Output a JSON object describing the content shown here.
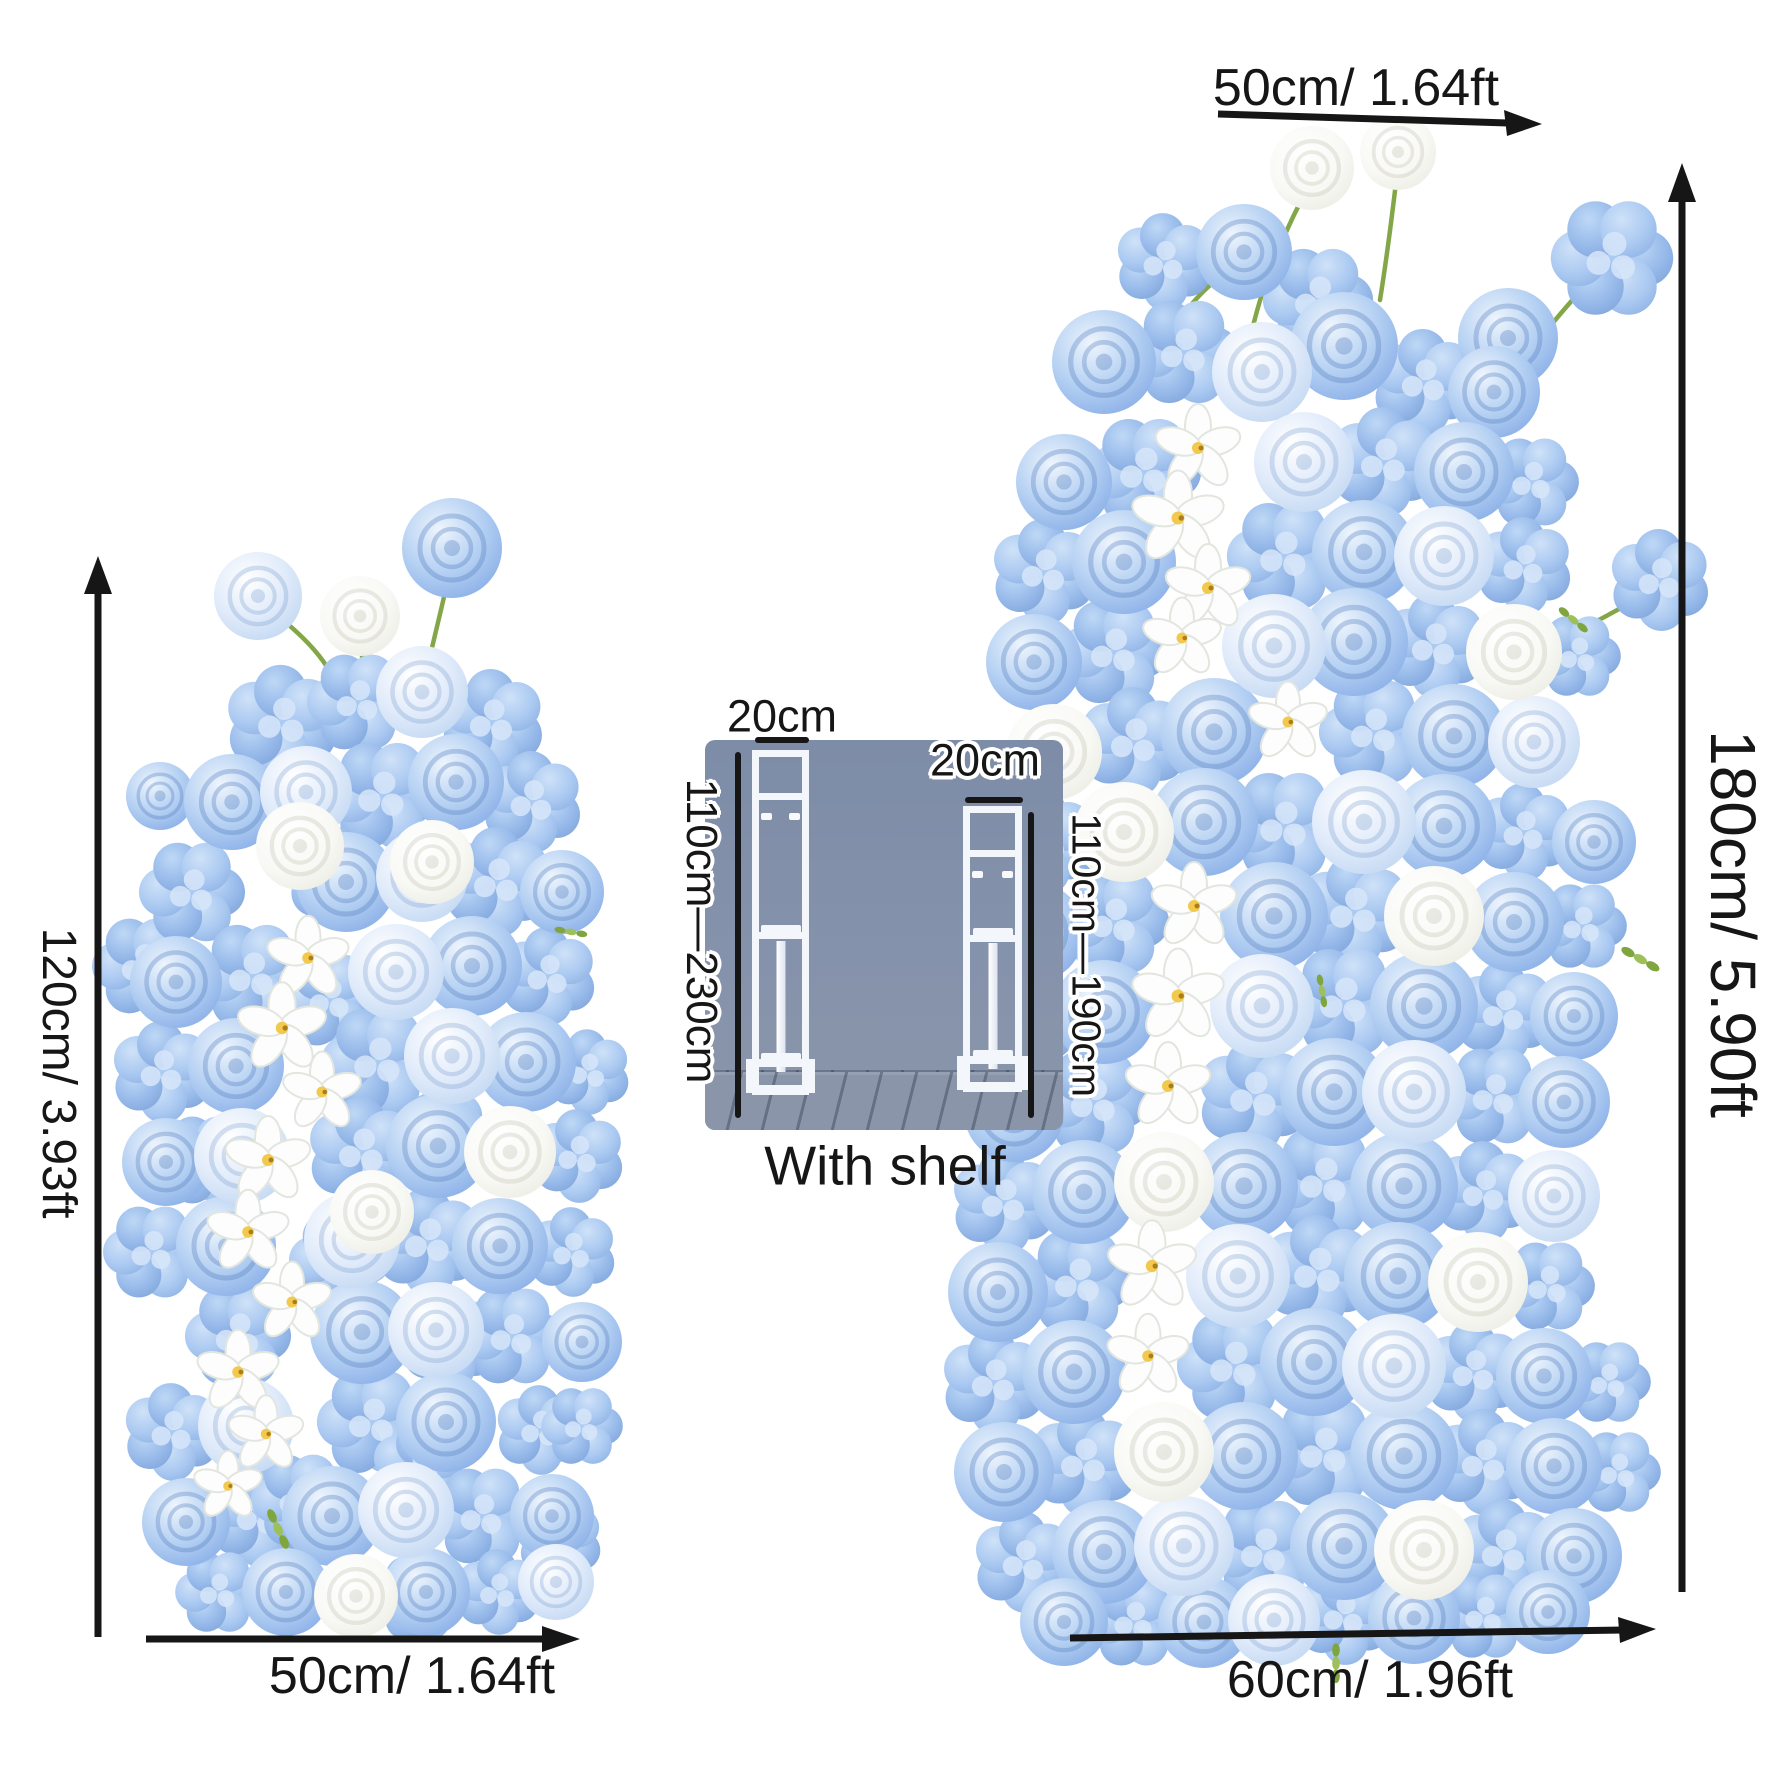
{
  "left_column": {
    "height_label": "120cm/ 3.93ft",
    "width_label": "50cm/ 1.64ft"
  },
  "right_column": {
    "top_width_label": "50cm/ 1.64ft",
    "height_label": "180cm/ 5.90ft",
    "bottom_width_label": "60cm/ 1.96ft"
  },
  "inset": {
    "left_stand": {
      "width_label": "20cm",
      "height_label": "110cm—230cm"
    },
    "right_stand": {
      "width_label": "20cm",
      "height_label": "110cm—190cm"
    },
    "caption": "With shelf"
  },
  "colors": {
    "ink": "#161616",
    "photo_background": "#8290aa",
    "stand_white": "#f3f6fa",
    "blue_rose": "#7fa9e2",
    "pale_blue_rose": "#c9ddf5",
    "white_rose": "#ffffff",
    "hydrangea_blue": "#8db4e8",
    "orchid_white": "#fdfdfe",
    "orchid_center": "#f3c94d",
    "leaf_green": "#86a845"
  }
}
